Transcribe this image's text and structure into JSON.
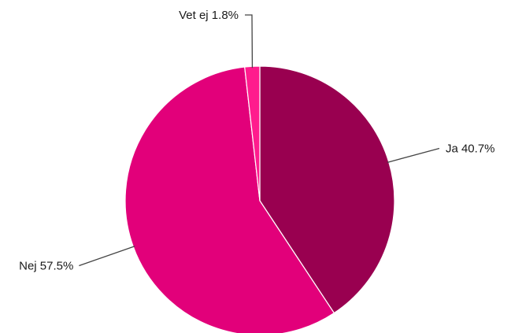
{
  "chart_data": {
    "type": "pie",
    "title": "",
    "start_angle_deg": 0,
    "direction": "clockwise",
    "slices": [
      {
        "label": "Ja",
        "value": 40.7,
        "display": "Ja 40.7%",
        "color": "#990050"
      },
      {
        "label": "Nej",
        "value": 57.5,
        "display": "Nej 57.5%",
        "color": "#e2007a"
      },
      {
        "label": "Vet ej",
        "value": 1.8,
        "display": "Vet ej 1.8%",
        "color": "#ff1c8d"
      }
    ],
    "slice_border_color": "#ffffff",
    "leader_line_color": "#444444",
    "legend": "none",
    "grid": false
  }
}
